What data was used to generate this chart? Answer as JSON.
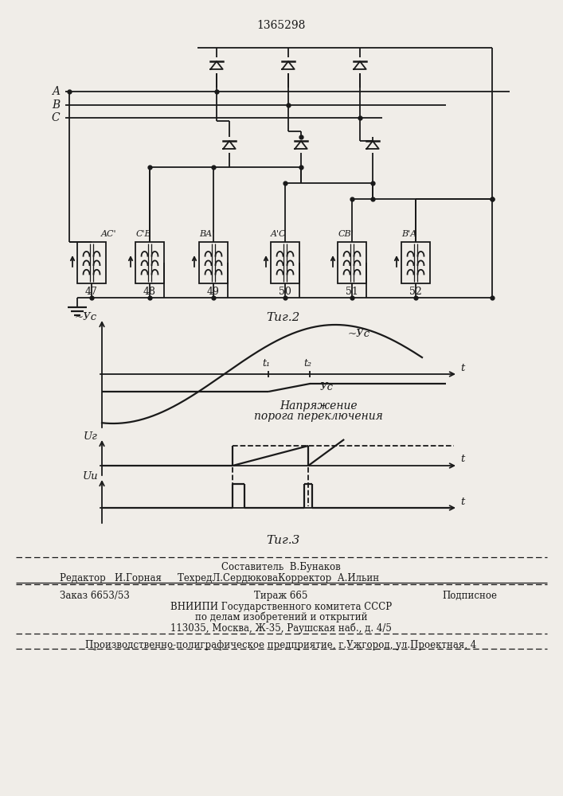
{
  "title": "1365298",
  "fig2_label": "Τиг.2",
  "fig3_label": "Τиг.3",
  "background_color": "#f0ede8",
  "line_color": "#1a1a1a",
  "transformer_labels": [
    "47",
    "48",
    "49",
    "50",
    "51",
    "52"
  ],
  "winding_labels_top": [
    "AC'",
    "C'В",
    "ВA'",
    "A'С",
    "СВ'",
    "В'А"
  ],
  "phase_labels": [
    "A",
    "В",
    "C"
  ],
  "footer_composer": "Составитель  В.Бунаков",
  "footer_editor": "Редактор   И.Горная",
  "footer_techred": "ТехредЛ.СердюковаКорректор  А.Ильин",
  "footer_order": "Заказ 6653/53",
  "footer_tirazh": "Тираж 665",
  "footer_podp": "Подписное",
  "footer_vniip": "ВНИИПИ Государственного комитета СССР",
  "footer_dela": "по делам изобретений и открытий",
  "footer_addr": "113035, Москва, Ж-35, Раушская наб., д. 4/5",
  "footer_prod": "Производственно-полиграфическое предприятие, г.Ужгород, ул.Проектная, 4",
  "napryazhenie_text": "Напряжение",
  "poroga_text": "порога переключения"
}
